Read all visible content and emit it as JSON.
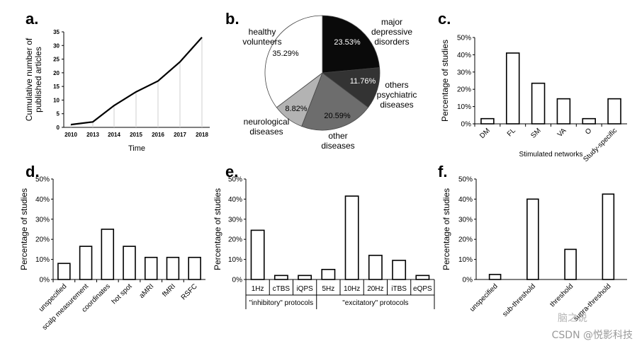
{
  "panels": {
    "a": "a.",
    "b": "b.",
    "c": "c.",
    "d": "d.",
    "e": "e.",
    "f": "f."
  },
  "watermark": "CSDN @悦影科技",
  "watermark_logo": "脑之说",
  "chart_data": [
    {
      "id": "a",
      "type": "line",
      "x": [
        "2010",
        "2013",
        "2014",
        "2015",
        "2016",
        "2017",
        "2018"
      ],
      "values": [
        1,
        2,
        8,
        13,
        17,
        24,
        33
      ],
      "xlabel": "Time",
      "ylabel": [
        "Cumulative number of",
        "published articles"
      ],
      "ylim": [
        0,
        35
      ],
      "yticks": [
        "0",
        "5",
        "10",
        "15",
        "20",
        "25",
        "30",
        "35"
      ]
    },
    {
      "id": "b",
      "type": "pie",
      "slices": [
        {
          "label": "major depressive disorders",
          "lines": [
            "major",
            "depressive",
            "disorders"
          ],
          "value": 23.53,
          "pct": "23.53%",
          "color": "#0a0a0a",
          "textcolor": "#ffffff"
        },
        {
          "label": "others psychiatric diseases",
          "lines": [
            "others",
            "psychiatric",
            "diseases"
          ],
          "value": 11.76,
          "pct": "11.76%",
          "color": "#333333",
          "textcolor": "#ffffff"
        },
        {
          "label": "other diseases",
          "lines": [
            "other",
            "diseases"
          ],
          "value": 20.59,
          "pct": "20.59%",
          "color": "#6d6d6d",
          "textcolor": "#000000"
        },
        {
          "label": "neurological diseases",
          "lines": [
            "neurological",
            "diseases"
          ],
          "value": 8.82,
          "pct": "8.82%",
          "color": "#b3b3b3",
          "textcolor": "#000000"
        },
        {
          "label": "healthy volunteers",
          "lines": [
            "healthy",
            "volunteers"
          ],
          "value": 35.29,
          "pct": "35.29%",
          "color": "#ffffff",
          "textcolor": "#000000"
        }
      ]
    },
    {
      "id": "c",
      "type": "bar",
      "categories": [
        "DM",
        "FL",
        "SM",
        "VA",
        "O",
        "Study-specific"
      ],
      "values": [
        3,
        41,
        23.5,
        14.5,
        3,
        14.5
      ],
      "xlabel": "Stimulated networks",
      "ylabel": "Percentage of studies",
      "ylim": [
        0,
        50
      ],
      "yticks": [
        "0%",
        "10%",
        "20%",
        "30%",
        "40%",
        "50%"
      ]
    },
    {
      "id": "d",
      "type": "bar",
      "categories": [
        "unspecified",
        "scalp measurement",
        "coordinates",
        "hot spot",
        "aMRI",
        "fMRI",
        "RSFC"
      ],
      "values": [
        8,
        16.5,
        25,
        16.5,
        11,
        11,
        11
      ],
      "ylabel": "Percentage of studies",
      "ylim": [
        0,
        50
      ],
      "yticks": [
        "0%",
        "10%",
        "20%",
        "30%",
        "40%",
        "50%"
      ]
    },
    {
      "id": "e",
      "type": "bar",
      "categories": [
        "1Hz",
        "cTBS",
        "iQPS",
        "5Hz",
        "10Hz",
        "20Hz",
        "iTBS",
        "eQPS"
      ],
      "values": [
        24.5,
        2,
        2,
        5,
        41.5,
        12,
        9.5,
        2
      ],
      "groups": [
        {
          "label": "\"inhibitory\" protocols",
          "count": 3
        },
        {
          "label": "\"excitatory\" protocols",
          "count": 5
        }
      ],
      "ylabel": "Percentage of studies",
      "ylim": [
        0,
        50
      ],
      "yticks": [
        "0%",
        "10%",
        "20%",
        "30%",
        "40%",
        "50%"
      ]
    },
    {
      "id": "f",
      "type": "bar",
      "categories": [
        "unspecified",
        "sub-threshold",
        "threshold",
        "supra-threshold"
      ],
      "values": [
        2.5,
        40,
        15,
        42.5
      ],
      "ylabel": "Percentage of studies",
      "ylim": [
        0,
        50
      ],
      "yticks": [
        "0%",
        "10%",
        "20%",
        "30%",
        "40%",
        "50%"
      ]
    }
  ]
}
